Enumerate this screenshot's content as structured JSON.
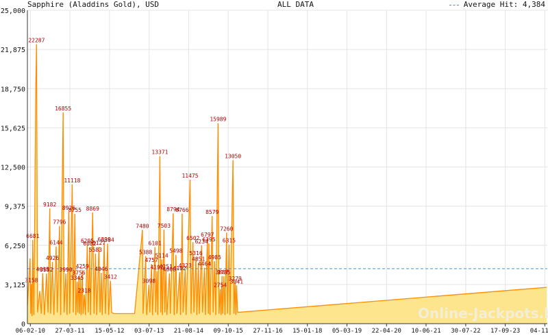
{
  "header": {
    "title": "Sapphire (Aladdins Gold), USD",
    "center": "ALL DATA",
    "legend": "Average Hit: 4,384"
  },
  "watermark": "Online-Jackpots.biz",
  "colors": {
    "area_fill": "#fde58e",
    "line": "#ff8c00",
    "average_line": "#3399cc",
    "label_text": "#b00000",
    "grid": "#e4e4e4"
  },
  "chart_data": {
    "type": "area",
    "title": "Sapphire (Aladdins Gold), USD",
    "ylabel": "",
    "xlabel": "",
    "ylim": [
      0,
      25000
    ],
    "y_ticks": [
      "0",
      "3,125",
      "6,250",
      "9,375",
      "12,500",
      "15,625",
      "18,750",
      "21,875",
      "25,000"
    ],
    "x_ticks": [
      "06-02-10",
      "27-03-11",
      "15-05-12",
      "03-07-13",
      "21-08-14",
      "09-10-15",
      "27-11-16",
      "15-01-18",
      "05-03-19",
      "22-04-20",
      "10-06-21",
      "30-07-22",
      "17-09-23",
      "04-11-24"
    ],
    "grid": true,
    "legend_position": "top-right",
    "average_hit": 4384,
    "series": [
      {
        "points": [
          [
            "06-01-10",
            1500
          ],
          [
            "03-02-10",
            5200
          ],
          [
            "10-02-10",
            800
          ],
          [
            "17-02-10",
            3158
          ],
          [
            "24-02-10",
            600
          ],
          [
            "03-03-10",
            6681
          ],
          [
            "15-03-10",
            700
          ],
          [
            "04-04-10",
            19000
          ],
          [
            "12-04-10",
            22287
          ],
          [
            "22-04-10",
            900
          ],
          [
            "15-05-10",
            2600
          ],
          [
            "01-06-10",
            800
          ],
          [
            "15-06-10",
            4015
          ],
          [
            "03-07-10",
            700
          ],
          [
            "25-07-10",
            3982
          ],
          [
            "10-08-10",
            900
          ],
          [
            "28-08-10",
            9182
          ],
          [
            "06-09-10",
            800
          ],
          [
            "25-09-10",
            4926
          ],
          [
            "10-10-10",
            700
          ],
          [
            "03-11-10",
            6144
          ],
          [
            "15-11-10",
            900
          ],
          [
            "08-12-10",
            7796
          ],
          [
            "20-12-10",
            700
          ],
          [
            "15-01-11",
            16855
          ],
          [
            "25-01-11",
            900
          ],
          [
            "12-02-11",
            3990
          ],
          [
            "25-02-11",
            700
          ],
          [
            "15-03-11",
            8926
          ],
          [
            "25-03-11",
            800
          ],
          [
            "20-04-11",
            11118
          ],
          [
            "01-05-11",
            900
          ],
          [
            "18-05-11",
            8755
          ],
          [
            "28-05-11",
            700
          ],
          [
            "10-06-11",
            3345
          ],
          [
            "18-06-11",
            900
          ],
          [
            "28-06-11",
            3756
          ],
          [
            "05-07-11",
            800
          ],
          [
            "15-07-11",
            3700
          ],
          [
            "22-07-11",
            700
          ],
          [
            "04-08-11",
            4259
          ],
          [
            "12-08-11",
            800
          ],
          [
            "25-08-11",
            2318
          ],
          [
            "05-09-11",
            700
          ],
          [
            "25-09-11",
            6295
          ],
          [
            "05-10-11",
            900
          ],
          [
            "20-10-11",
            6082
          ],
          [
            "28-10-11",
            700
          ],
          [
            "20-11-11",
            8869
          ],
          [
            "05-12-11",
            800
          ],
          [
            "20-12-11",
            5583
          ],
          [
            "02-01-12",
            700
          ],
          [
            "25-01-12",
            6127
          ],
          [
            "05-02-12",
            900
          ],
          [
            "18-02-12",
            4046
          ],
          [
            "28-02-12",
            700
          ],
          [
            "20-03-12",
            6399
          ],
          [
            "01-04-12",
            800
          ],
          [
            "25-04-12",
            6384
          ],
          [
            "05-05-12",
            700
          ],
          [
            "25-05-12",
            3412
          ],
          [
            "05-06-12",
            900
          ],
          [
            "01-07-12",
            800
          ],
          [
            "01-02-13",
            800
          ],
          [
            "24-04-13",
            7480
          ],
          [
            "01-05-13",
            800
          ],
          [
            "28-05-13",
            5388
          ],
          [
            "07-06-13",
            700
          ],
          [
            "01-07-13",
            3098
          ],
          [
            "10-07-13",
            900
          ],
          [
            "28-07-13",
            4757
          ],
          [
            "07-08-13",
            700
          ],
          [
            "02-09-13",
            6101
          ],
          [
            "10-09-13",
            900
          ],
          [
            "23-09-13",
            4192
          ],
          [
            "02-10-13",
            700
          ],
          [
            "24-10-13",
            13371
          ],
          [
            "02-11-13",
            900
          ],
          [
            "12-11-13",
            5114
          ],
          [
            "20-11-13",
            700
          ],
          [
            "06-12-13",
            7503
          ],
          [
            "14-12-13",
            900
          ],
          [
            "26-12-13",
            4251
          ],
          [
            "05-01-14",
            700
          ],
          [
            "01-02-14",
            4008
          ],
          [
            "10-02-14",
            800
          ],
          [
            "12-03-14",
            8794
          ],
          [
            "22-03-14",
            700
          ],
          [
            "10-04-14",
            5498
          ],
          [
            "20-04-14",
            800
          ],
          [
            "18-05-14",
            4102
          ],
          [
            "28-05-14",
            700
          ],
          [
            "14-06-14",
            8766
          ],
          [
            "24-06-14",
            900
          ],
          [
            "15-07-14",
            4323
          ],
          [
            "25-07-14",
            700
          ],
          [
            "05-09-14",
            11475
          ],
          [
            "15-09-14",
            800
          ],
          [
            "05-10-14",
            6502
          ],
          [
            "15-10-14",
            900
          ],
          [
            "05-11-14",
            5316
          ],
          [
            "15-11-14",
            700
          ],
          [
            "01-12-14",
            4851
          ],
          [
            "10-12-14",
            800
          ],
          [
            "03-01-15",
            6234
          ],
          [
            "13-01-15",
            900
          ],
          [
            "02-02-15",
            4464
          ],
          [
            "12-02-15",
            700
          ],
          [
            "05-03-15",
            6797
          ],
          [
            "15-03-15",
            800
          ],
          [
            "21-03-15",
            6395
          ],
          [
            "01-04-15",
            700
          ],
          [
            "24-04-15",
            8579
          ],
          [
            "04-05-15",
            900
          ],
          [
            "20-05-15",
            4985
          ],
          [
            "01-06-15",
            700
          ],
          [
            "25-06-15",
            15989
          ],
          [
            "05-07-15",
            800
          ],
          [
            "18-07-15",
            2754
          ],
          [
            "26-07-15",
            700
          ],
          [
            "05-08-15",
            3807
          ],
          [
            "12-08-15",
            800
          ],
          [
            "25-08-15",
            3785
          ],
          [
            "05-09-15",
            700
          ],
          [
            "22-09-15",
            7260
          ],
          [
            "02-10-15",
            800
          ],
          [
            "18-10-15",
            6315
          ],
          [
            "28-10-15",
            700
          ],
          [
            "28-11-15",
            13050
          ],
          [
            "08-12-15",
            800
          ],
          [
            "20-12-15",
            3279
          ],
          [
            "28-12-15",
            700
          ],
          [
            "05-01-16",
            3041
          ],
          [
            "15-01-16",
            900
          ],
          [
            "24-11-24",
            2900
          ]
        ]
      }
    ],
    "data_labels": [
      "22287",
      "16855",
      "15989",
      "13371",
      "13050",
      "11475",
      "11118",
      "9182",
      "8926",
      "8869",
      "8794",
      "8766",
      "8755",
      "8579",
      "7796",
      "7503",
      "7480",
      "7260",
      "6797",
      "6681",
      "6502",
      "6395",
      "6384",
      "6399",
      "6315",
      "6295",
      "6234",
      "6144",
      "6127",
      "6101",
      "6082",
      "5583",
      "5498",
      "5388",
      "5316",
      "5114",
      "4985",
      "4926",
      "4851",
      "4757",
      "4464",
      "4323",
      "4259",
      "4251",
      "4192",
      "4102",
      "4046",
      "4015",
      "4008",
      "3990",
      "3982",
      "3807",
      "3785",
      "3756",
      "3412",
      "3345",
      "3279",
      "3158",
      "3098",
      "3041",
      "2754",
      "2318"
    ]
  }
}
